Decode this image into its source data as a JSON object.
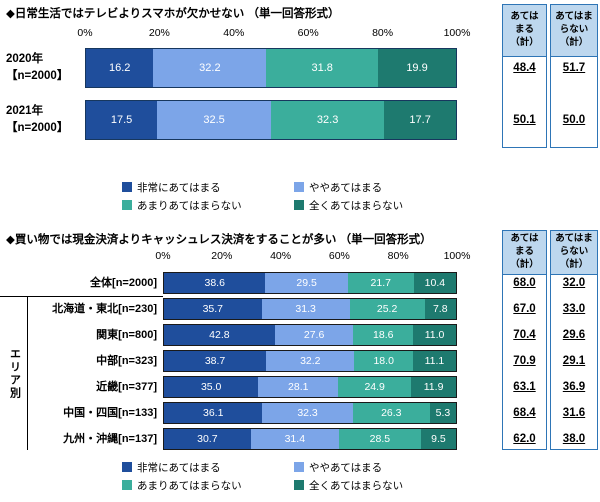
{
  "colors": {
    "very_agree": "#1F4E9C",
    "somewhat_agree": "#7CA5E8",
    "somewhat_disagree": "#3BAE9C",
    "disagree": "#1E7A6F",
    "summary_header_bg": "#BDD7EE",
    "summary_border": "#2E75B6"
  },
  "chart_data": [
    {
      "type": "bar",
      "stacked": true,
      "orientation": "horizontal",
      "title": "◆日常生活ではテレビよりスマホが欠かせない （単一回答形式）",
      "x_ticks": [
        "0%",
        "20%",
        "40%",
        "60%",
        "80%",
        "100%"
      ],
      "xlim": [
        0,
        100
      ],
      "grid": false,
      "legend_position": "bottom",
      "categories": [
        "2020年【n=2000】",
        "2021年【n=2000】"
      ],
      "category_label_lines": [
        [
          "2020年",
          "【n=2000】"
        ],
        [
          "2021年",
          "【n=2000】"
        ]
      ],
      "series": [
        {
          "name": "非常にあてはまる",
          "color": "#1F4E9C",
          "values": [
            16.2,
            17.5
          ]
        },
        {
          "name": "ややあてはまる",
          "color": "#7CA5E8",
          "values": [
            32.2,
            32.5
          ]
        },
        {
          "name": "あまりあてはまらない",
          "color": "#3BAE9C",
          "values": [
            31.8,
            32.3
          ]
        },
        {
          "name": "全くあてはまらない",
          "color": "#1E7A6F",
          "values": [
            19.9,
            17.7
          ]
        }
      ],
      "summary": {
        "agree_header_lines": [
          "あては",
          "まる",
          "（計）"
        ],
        "disagree_header_lines": [
          "あてはま",
          "らない",
          "（計）"
        ],
        "agree_totals": [
          "48.4",
          "50.1"
        ],
        "disagree_totals": [
          "51.7",
          "50.0"
        ]
      }
    },
    {
      "type": "bar",
      "stacked": true,
      "orientation": "horizontal",
      "title": "◆買い物では現金決済よりキャッシュレス決済をすることが多い （単一回答形式）",
      "group_label": "エリア別",
      "x_ticks": [
        "0%",
        "20%",
        "40%",
        "60%",
        "80%",
        "100%"
      ],
      "xlim": [
        0,
        100
      ],
      "grid": false,
      "legend_position": "bottom",
      "categories": [
        "全体[n=2000]",
        "北海道・東北[n=230]",
        "関東[n=800]",
        "中部[n=323]",
        "近畿[n=377]",
        "中国・四国[n=133]",
        "九州・沖縄[n=137]"
      ],
      "series": [
        {
          "name": "非常にあてはまる",
          "color": "#1F4E9C",
          "values": [
            38.6,
            35.7,
            42.8,
            38.7,
            35.0,
            36.1,
            30.7
          ]
        },
        {
          "name": "ややあてはまる",
          "color": "#7CA5E8",
          "values": [
            29.5,
            31.3,
            27.6,
            32.2,
            28.1,
            32.3,
            31.4
          ]
        },
        {
          "name": "あまりあてはまらない",
          "color": "#3BAE9C",
          "values": [
            21.7,
            25.2,
            18.6,
            18.0,
            24.9,
            26.3,
            28.5
          ]
        },
        {
          "name": "全くあてはまらない",
          "color": "#1E7A6F",
          "values": [
            10.4,
            7.8,
            11.0,
            11.1,
            11.9,
            5.3,
            9.5
          ]
        }
      ],
      "summary": {
        "agree_header_lines": [
          "あては",
          "まる",
          "（計）"
        ],
        "disagree_header_lines": [
          "あてはま",
          "らない",
          "（計）"
        ],
        "agree_totals": [
          "68.0",
          "67.0",
          "70.4",
          "70.9",
          "63.1",
          "68.4",
          "62.0"
        ],
        "disagree_totals": [
          "32.0",
          "33.0",
          "29.6",
          "29.1",
          "36.9",
          "31.6",
          "38.0"
        ]
      }
    }
  ]
}
